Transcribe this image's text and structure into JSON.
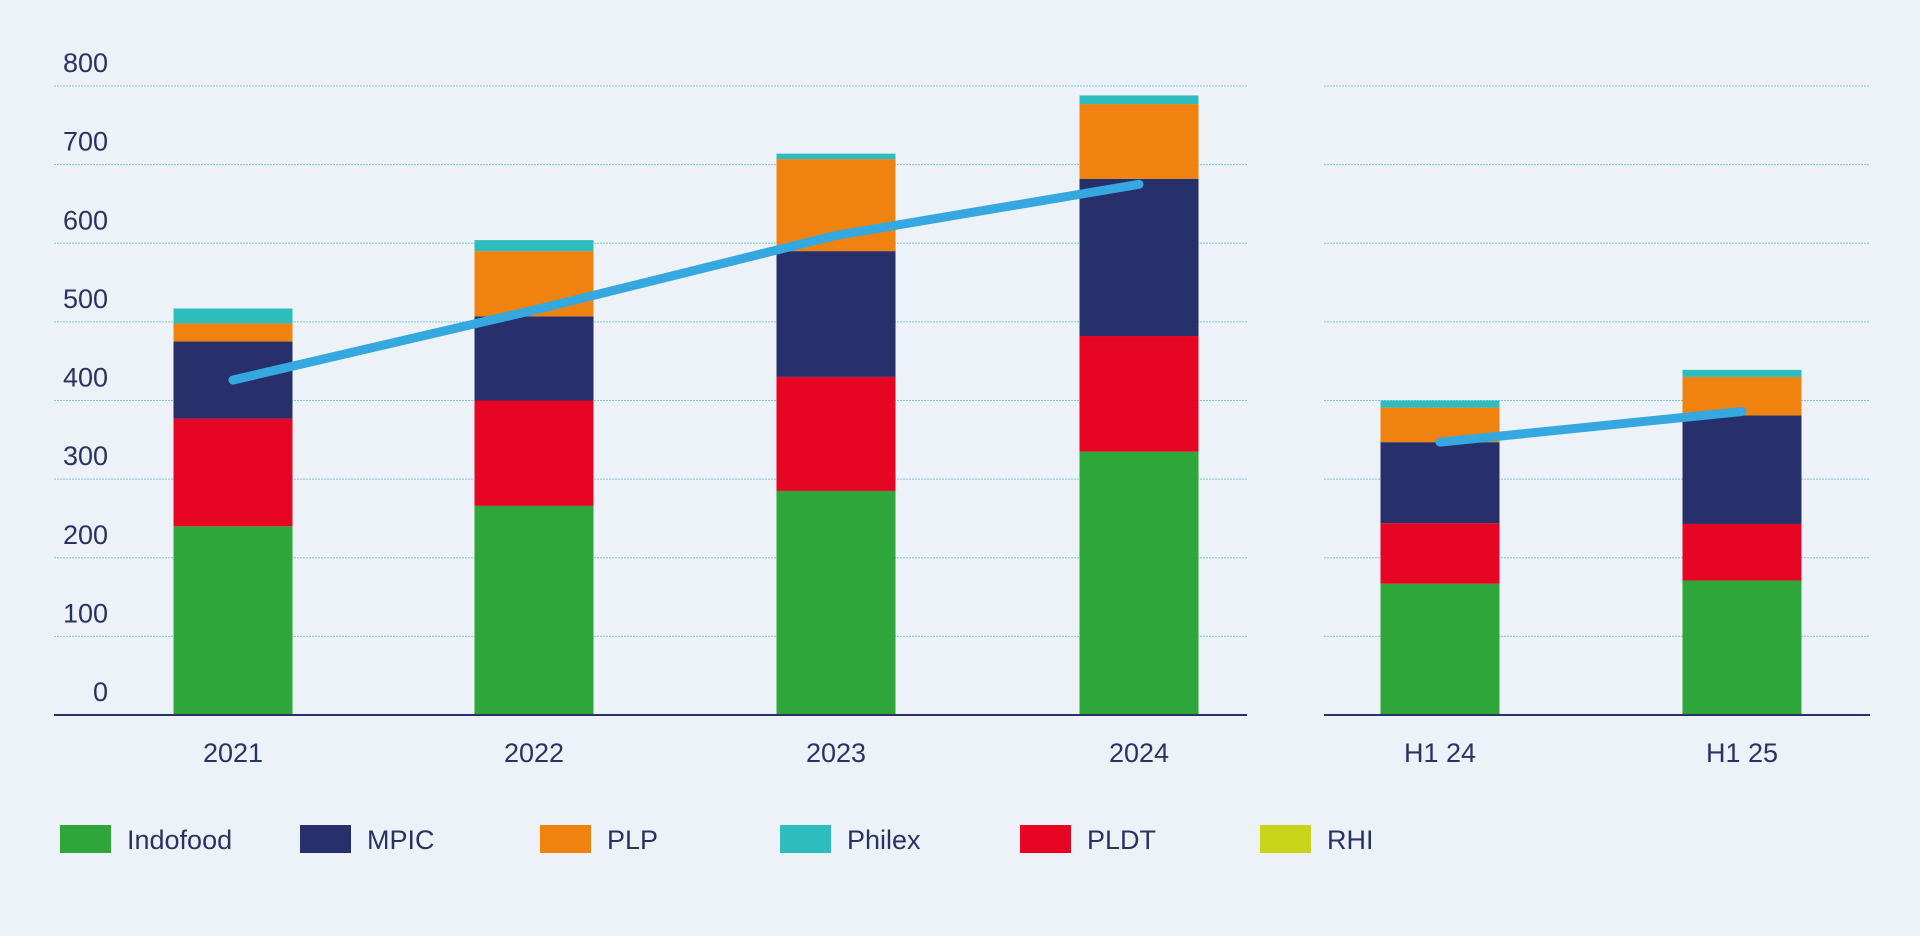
{
  "chart_data": {
    "type": "bar",
    "stacked": true,
    "panels": [
      {
        "categories": [
          "2021",
          "2022",
          "2023",
          "2024"
        ]
      },
      {
        "categories": [
          "H1 24",
          "H1 25"
        ]
      }
    ],
    "categories": [
      "2021",
      "2022",
      "2023",
      "2024",
      "H1 24",
      "H1 25"
    ],
    "ylim": [
      0,
      800
    ],
    "yticks": [
      0,
      100,
      200,
      300,
      400,
      500,
      600,
      700,
      800
    ],
    "grid": true,
    "legend_position": "bottom",
    "series": [
      {
        "name": "Indofood",
        "color": "#2ea63a",
        "values": [
          240,
          266,
          285,
          335,
          167,
          171
        ]
      },
      {
        "name": "PLDT",
        "color": "#e60523",
        "values": [
          137,
          134,
          145,
          147,
          77,
          72
        ]
      },
      {
        "name": "MPIC",
        "color": "#27306b",
        "values": [
          98,
          107,
          160,
          200,
          103,
          138
        ]
      },
      {
        "name": "PLP",
        "color": "#f0820f",
        "values": [
          23,
          83,
          117,
          95,
          44,
          49
        ]
      },
      {
        "name": "Philex",
        "color": "#2fbcbc",
        "values": [
          19,
          14,
          7,
          11,
          9,
          9
        ]
      },
      {
        "name": "RHI",
        "color": "#c8d41a",
        "values": [
          0,
          0,
          0,
          0,
          0,
          0
        ]
      }
    ],
    "line": {
      "color": "#35a8e0",
      "values": [
        426,
        515,
        610,
        675,
        347,
        386
      ]
    },
    "legend_order": [
      "Indofood",
      "MPIC",
      "PLP",
      "Philex",
      "PLDT",
      "RHI"
    ]
  }
}
